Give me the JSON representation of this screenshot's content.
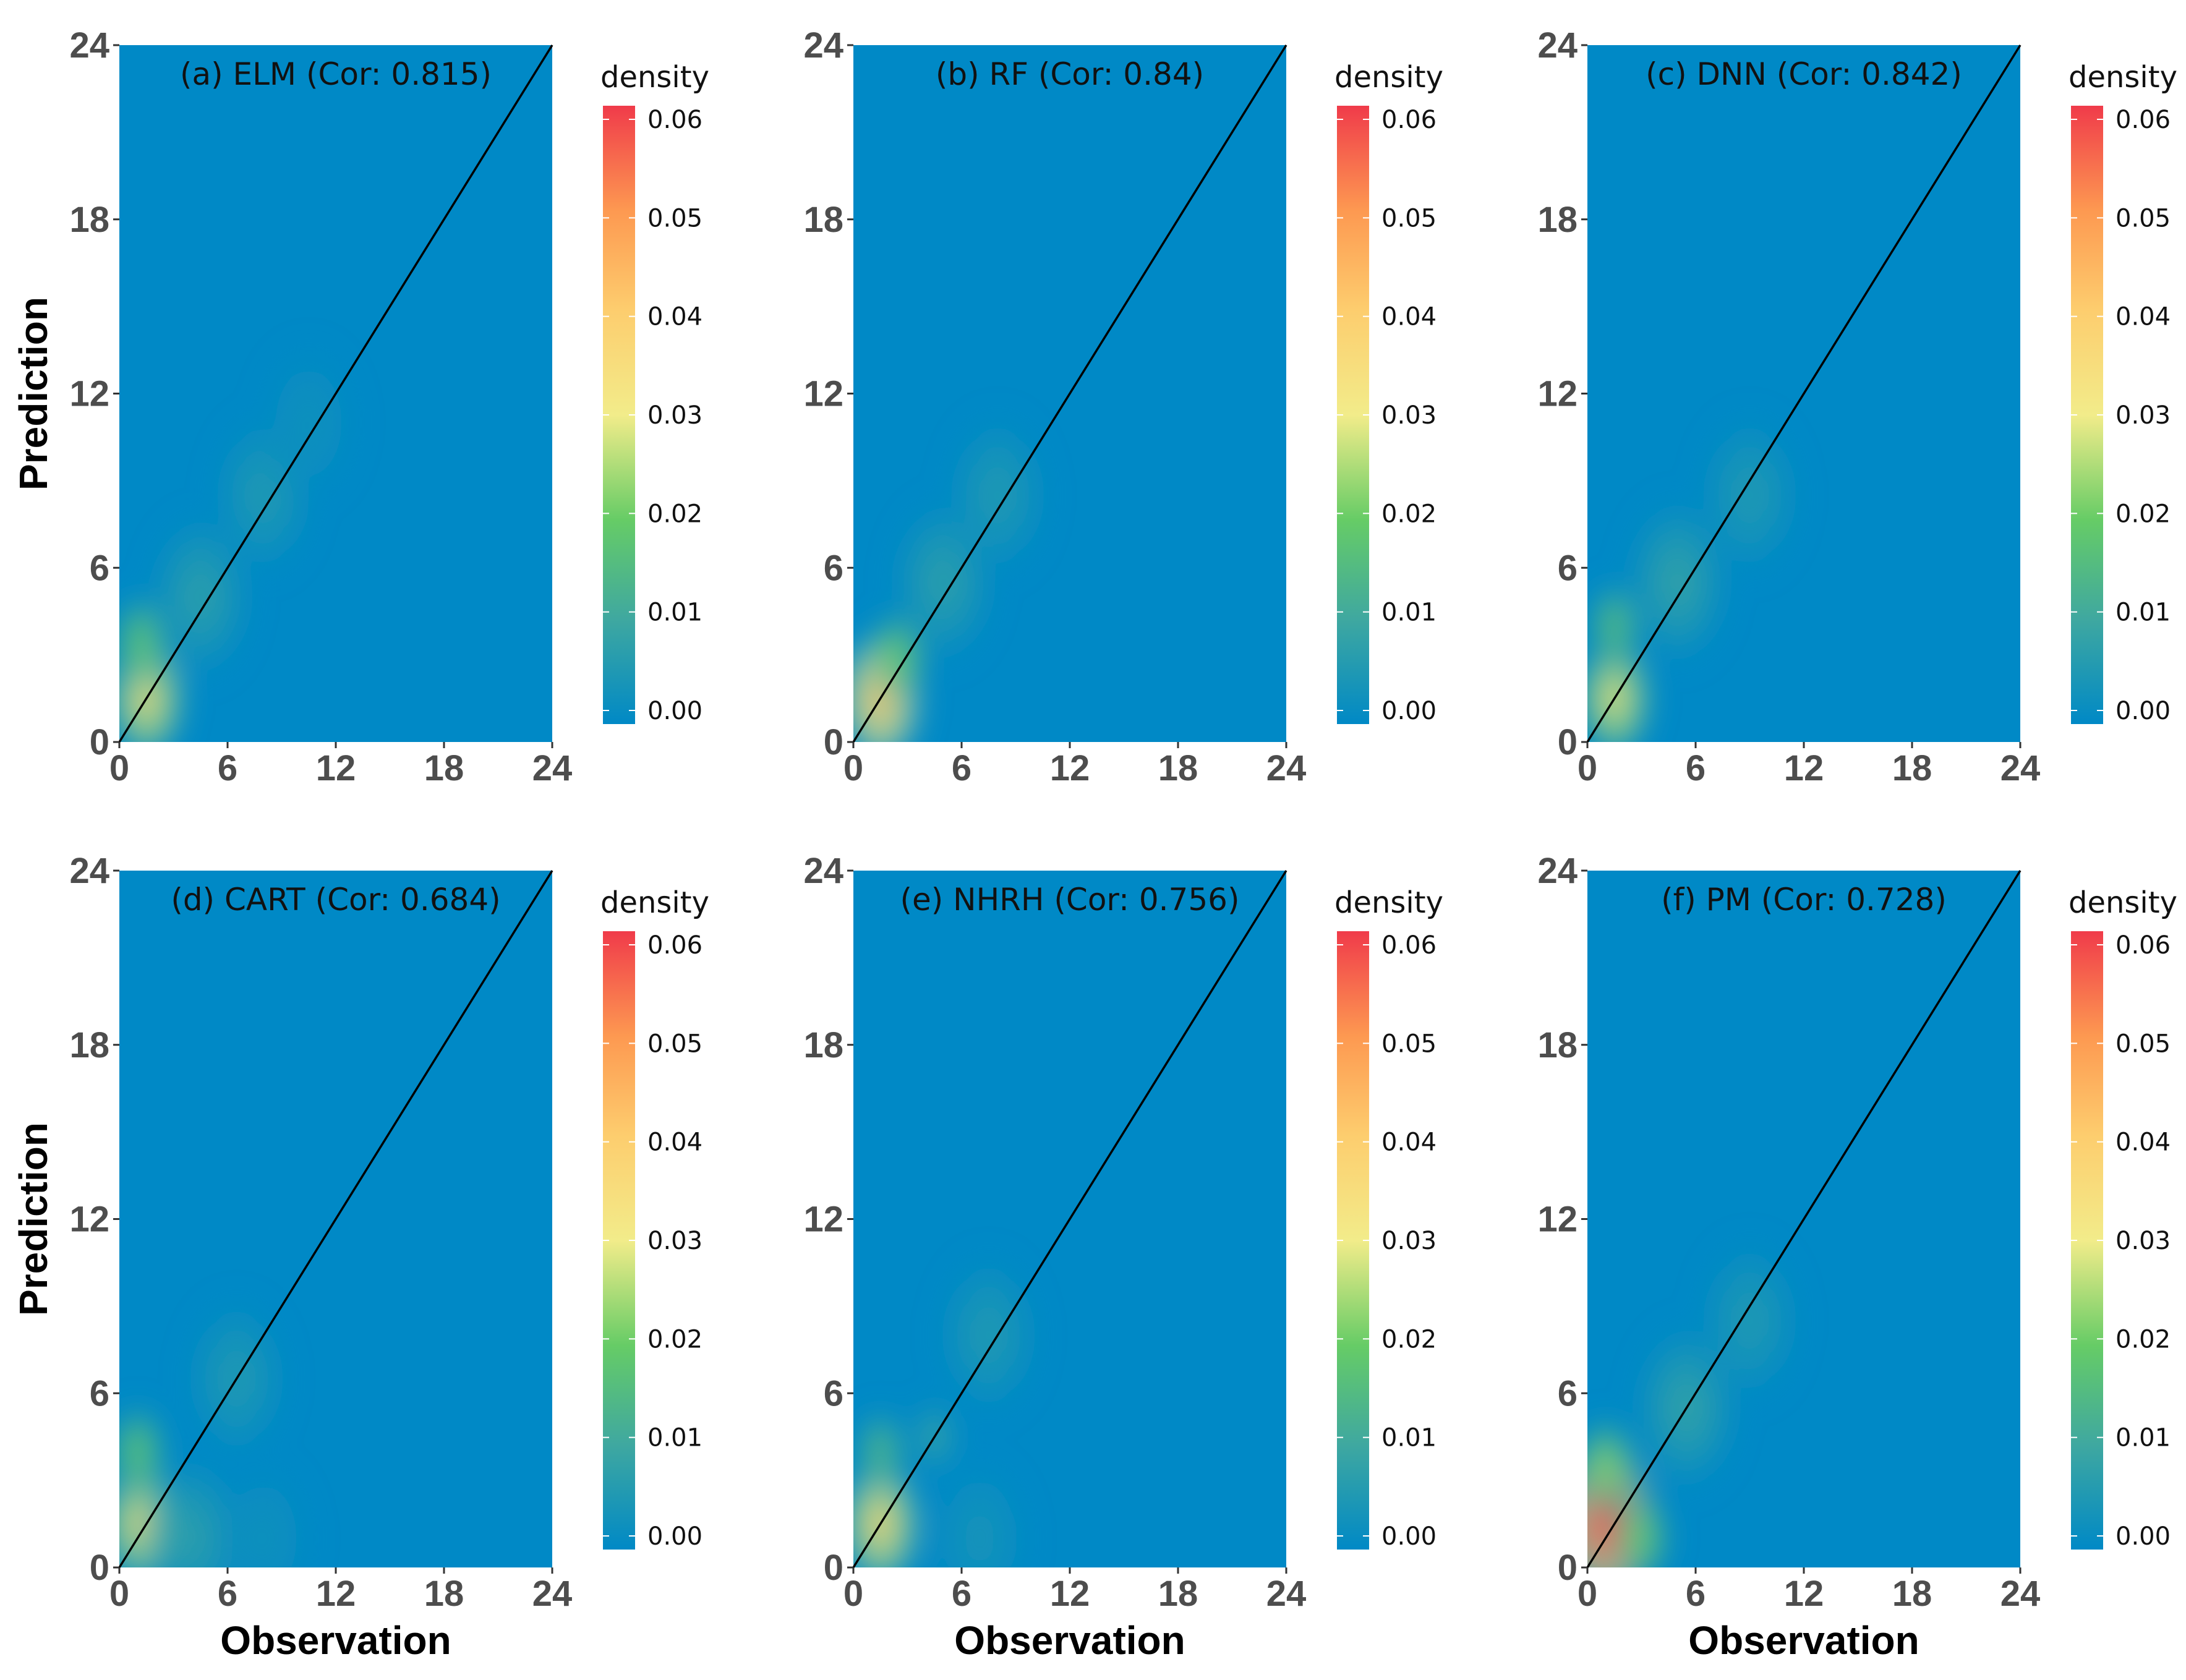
{
  "figure": {
    "colors": {
      "background": "#0089c6",
      "low": "#0089c6",
      "mid_green": "#66cc66",
      "mid_yellow": "#f2ec8a",
      "mid_orange": "#fd9951",
      "high": "#f03b4a",
      "identity_line": "#000000"
    }
  },
  "chart_data": [
    {
      "type": "heatmap",
      "title": "(a) ELM (Cor: 0.815)",
      "xlabel": "",
      "ylabel": "Prediction",
      "xlim": [
        0,
        24
      ],
      "ylim": [
        0,
        24
      ],
      "xticks": [
        "0",
        "6",
        "12",
        "18",
        "24"
      ],
      "yticks": [
        "0",
        "6",
        "12",
        "18",
        "24"
      ],
      "legend": {
        "title": "density",
        "position": "right",
        "ticks": [
          "0.00",
          "0.01",
          "0.02",
          "0.03",
          "0.04",
          "0.05",
          "0.06"
        ],
        "range": [
          0,
          0.06
        ]
      },
      "reference_line": "y = x",
      "density_peaks": [
        {
          "x": 1.5,
          "y": 1.5,
          "density": 0.036
        },
        {
          "x": 1.2,
          "y": 3.5,
          "density": 0.02
        },
        {
          "x": 4.5,
          "y": 5.0,
          "density": 0.008
        },
        {
          "x": 8.0,
          "y": 8.5,
          "density": 0.006
        },
        {
          "x": 10.5,
          "y": 11.0,
          "density": 0.003
        }
      ]
    },
    {
      "type": "heatmap",
      "title": "(b) RF (Cor: 0.84)",
      "xlabel": "",
      "ylabel": "",
      "xlim": [
        0,
        24
      ],
      "ylim": [
        0,
        24
      ],
      "xticks": [
        "0",
        "6",
        "12",
        "18",
        "24"
      ],
      "yticks": [
        "0",
        "6",
        "12",
        "18",
        "24"
      ],
      "legend": {
        "title": "density",
        "position": "right",
        "ticks": [
          "0.00",
          "0.01",
          "0.02",
          "0.03",
          "0.04",
          "0.05",
          "0.06"
        ],
        "range": [
          0,
          0.06
        ]
      },
      "reference_line": "y = x",
      "density_peaks": [
        {
          "x": 1.5,
          "y": 1.5,
          "density": 0.042
        },
        {
          "x": 2.5,
          "y": 3.0,
          "density": 0.02
        },
        {
          "x": 5.0,
          "y": 5.5,
          "density": 0.008
        },
        {
          "x": 8.0,
          "y": 8.5,
          "density": 0.006
        }
      ]
    },
    {
      "type": "heatmap",
      "title": "(c) DNN (Cor: 0.842)",
      "xlabel": "",
      "ylabel": "",
      "xlim": [
        0,
        24
      ],
      "ylim": [
        0,
        24
      ],
      "xticks": [
        "0",
        "6",
        "12",
        "18",
        "24"
      ],
      "yticks": [
        "0",
        "6",
        "12",
        "18",
        "24"
      ],
      "legend": {
        "title": "density",
        "position": "right",
        "ticks": [
          "0.00",
          "0.01",
          "0.02",
          "0.03",
          "0.04",
          "0.05",
          "0.06"
        ],
        "range": [
          0,
          0.06
        ]
      },
      "reference_line": "y = x",
      "density_peaks": [
        {
          "x": 1.5,
          "y": 1.5,
          "density": 0.034
        },
        {
          "x": 1.5,
          "y": 4.0,
          "density": 0.018
        },
        {
          "x": 5.0,
          "y": 5.5,
          "density": 0.009
        },
        {
          "x": 9.0,
          "y": 8.5,
          "density": 0.006
        }
      ]
    },
    {
      "type": "heatmap",
      "title": "(d) CART (Cor: 0.684)",
      "xlabel": "Observation",
      "ylabel": "Prediction",
      "xlim": [
        0,
        24
      ],
      "ylim": [
        0,
        24
      ],
      "xticks": [
        "0",
        "6",
        "12",
        "18",
        "24"
      ],
      "yticks": [
        "0",
        "6",
        "12",
        "18",
        "24"
      ],
      "legend": {
        "title": "density",
        "position": "right",
        "ticks": [
          "0.00",
          "0.01",
          "0.02",
          "0.03",
          "0.04",
          "0.05",
          "0.06"
        ],
        "range": [
          0,
          0.06
        ]
      },
      "reference_line": "y = x",
      "density_peaks": [
        {
          "x": 1.2,
          "y": 1.5,
          "density": 0.036
        },
        {
          "x": 1.0,
          "y": 4.0,
          "density": 0.02
        },
        {
          "x": 4.0,
          "y": 1.0,
          "density": 0.008
        },
        {
          "x": 6.5,
          "y": 6.5,
          "density": 0.006
        },
        {
          "x": 8.0,
          "y": 1.0,
          "density": 0.003
        }
      ]
    },
    {
      "type": "heatmap",
      "title": "(e) NHRH (Cor: 0.756)",
      "xlabel": "Observation",
      "ylabel": "",
      "xlim": [
        0,
        24
      ],
      "ylim": [
        0,
        24
      ],
      "xticks": [
        "0",
        "6",
        "12",
        "18",
        "24"
      ],
      "yticks": [
        "0",
        "6",
        "12",
        "18",
        "24"
      ],
      "legend": {
        "title": "density",
        "position": "right",
        "ticks": [
          "0.00",
          "0.01",
          "0.02",
          "0.03",
          "0.04",
          "0.05",
          "0.06"
        ],
        "range": [
          0,
          0.06
        ]
      },
      "reference_line": "y = x",
      "density_peaks": [
        {
          "x": 1.5,
          "y": 1.5,
          "density": 0.038
        },
        {
          "x": 1.5,
          "y": 4.0,
          "density": 0.016
        },
        {
          "x": 4.5,
          "y": 4.5,
          "density": 0.01
        },
        {
          "x": 7.5,
          "y": 8.0,
          "density": 0.006
        },
        {
          "x": 7.0,
          "y": 1.0,
          "density": 0.004
        }
      ]
    },
    {
      "type": "heatmap",
      "title": "(f) PM (Cor: 0.728)",
      "xlabel": "Observation",
      "ylabel": "",
      "xlim": [
        0,
        24
      ],
      "ylim": [
        0,
        24
      ],
      "xticks": [
        "0",
        "6",
        "12",
        "18",
        "24"
      ],
      "yticks": [
        "0",
        "6",
        "12",
        "18",
        "24"
      ],
      "legend": {
        "title": "density",
        "position": "right",
        "ticks": [
          "0.00",
          "0.01",
          "0.02",
          "0.03",
          "0.04",
          "0.05",
          "0.06"
        ],
        "range": [
          0,
          0.06
        ]
      },
      "reference_line": "y = x",
      "density_peaks": [
        {
          "x": 1.0,
          "y": 1.5,
          "density": 0.058
        },
        {
          "x": 1.0,
          "y": 3.5,
          "density": 0.022
        },
        {
          "x": 3.0,
          "y": 1.0,
          "density": 0.02
        },
        {
          "x": 5.5,
          "y": 5.5,
          "density": 0.009
        },
        {
          "x": 9.0,
          "y": 8.5,
          "density": 0.006
        }
      ]
    }
  ]
}
